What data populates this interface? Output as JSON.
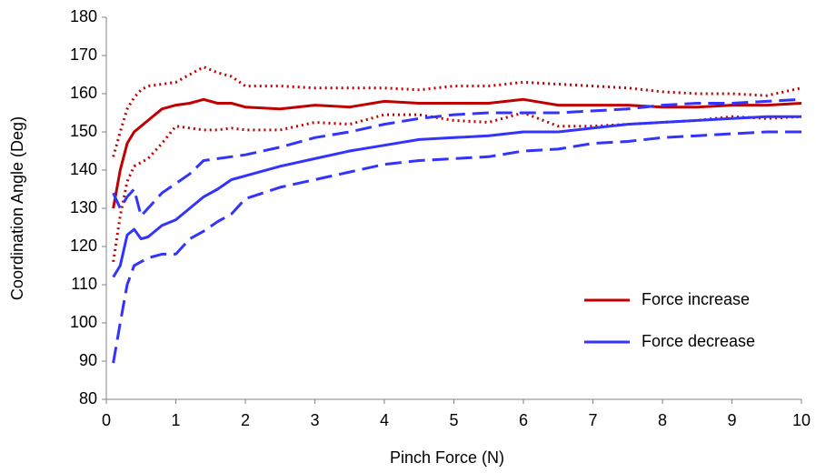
{
  "chart_data": {
    "type": "line",
    "x_label": "Pinch Force (N)",
    "y_label": "Coordination Angle (Deg)",
    "x": [
      0.1,
      0.2,
      0.3,
      0.4,
      0.5,
      0.6,
      0.8,
      1,
      1.2,
      1.4,
      1.6,
      1.8,
      2,
      2.5,
      3,
      3.5,
      4,
      4.5,
      5,
      5.5,
      6,
      6.5,
      7,
      7.5,
      8,
      8.5,
      9,
      9.5,
      10
    ],
    "series": [
      {
        "name": "Force increase",
        "color": "#c00000",
        "style": "solid",
        "values": [
          130,
          140,
          147,
          150,
          151.5,
          153,
          156,
          157,
          157.5,
          158.5,
          157.5,
          157.5,
          156.5,
          156,
          157,
          156.5,
          158,
          157.5,
          157.5,
          157.5,
          158.5,
          157,
          157,
          157,
          156.5,
          156.5,
          157,
          157,
          157.5
        ]
      },
      {
        "color": "#c00000",
        "style": "dotted",
        "values": [
          143.5,
          150,
          156,
          159,
          161,
          162,
          162.5,
          163,
          165,
          167,
          165.5,
          164.5,
          162,
          162,
          161.5,
          161.5,
          161.5,
          161,
          162,
          162,
          163,
          162.5,
          162,
          161.5,
          160.5,
          160,
          160,
          159.5,
          161.5
        ]
      },
      {
        "color": "#c00000",
        "style": "dotted",
        "values": [
          116,
          128,
          137,
          141,
          142,
          143,
          147,
          151.5,
          151,
          150.5,
          150.5,
          151,
          150.5,
          150.5,
          152.5,
          152,
          154.5,
          154.5,
          153,
          152.5,
          155,
          151.5,
          151.5,
          152,
          152.5,
          153,
          154,
          153.5,
          154
        ]
      },
      {
        "name": "Force decrease",
        "color": "#3333ff",
        "style": "solid",
        "values": [
          112,
          115,
          123,
          124.5,
          122,
          122.5,
          125.5,
          127,
          130,
          133,
          135,
          137.5,
          138.5,
          141,
          143,
          145,
          146.5,
          148,
          148.5,
          149,
          150,
          150,
          151,
          152,
          152.5,
          153,
          153.5,
          154,
          154
        ]
      },
      {
        "color": "#3333ff",
        "style": "dashed",
        "values": [
          134,
          130,
          133,
          135,
          128,
          130,
          134,
          136.5,
          139,
          142.5,
          143,
          143.5,
          144,
          146,
          148.5,
          150,
          152,
          153.5,
          154.5,
          155,
          155,
          155,
          155.5,
          156,
          157,
          157.5,
          157.5,
          158,
          158.5
        ]
      },
      {
        "color": "#3333ff",
        "style": "dashed",
        "values": [
          89.5,
          100,
          110,
          115,
          116,
          117,
          118,
          118,
          122,
          124,
          126.5,
          128.5,
          132.5,
          135.5,
          137.5,
          139.5,
          141.5,
          142.5,
          143,
          143.5,
          145,
          145.5,
          147,
          147.5,
          148.5,
          149,
          149.5,
          150,
          150
        ]
      }
    ],
    "xlim": [
      0,
      10
    ],
    "xticks": [
      0,
      1,
      2,
      3,
      4,
      5,
      6,
      7,
      8,
      9,
      10
    ],
    "ylim": [
      80,
      180
    ],
    "yticks": [
      80,
      90,
      100,
      110,
      120,
      130,
      140,
      150,
      160,
      170,
      180
    ],
    "grid": false,
    "legend": "lower right"
  }
}
